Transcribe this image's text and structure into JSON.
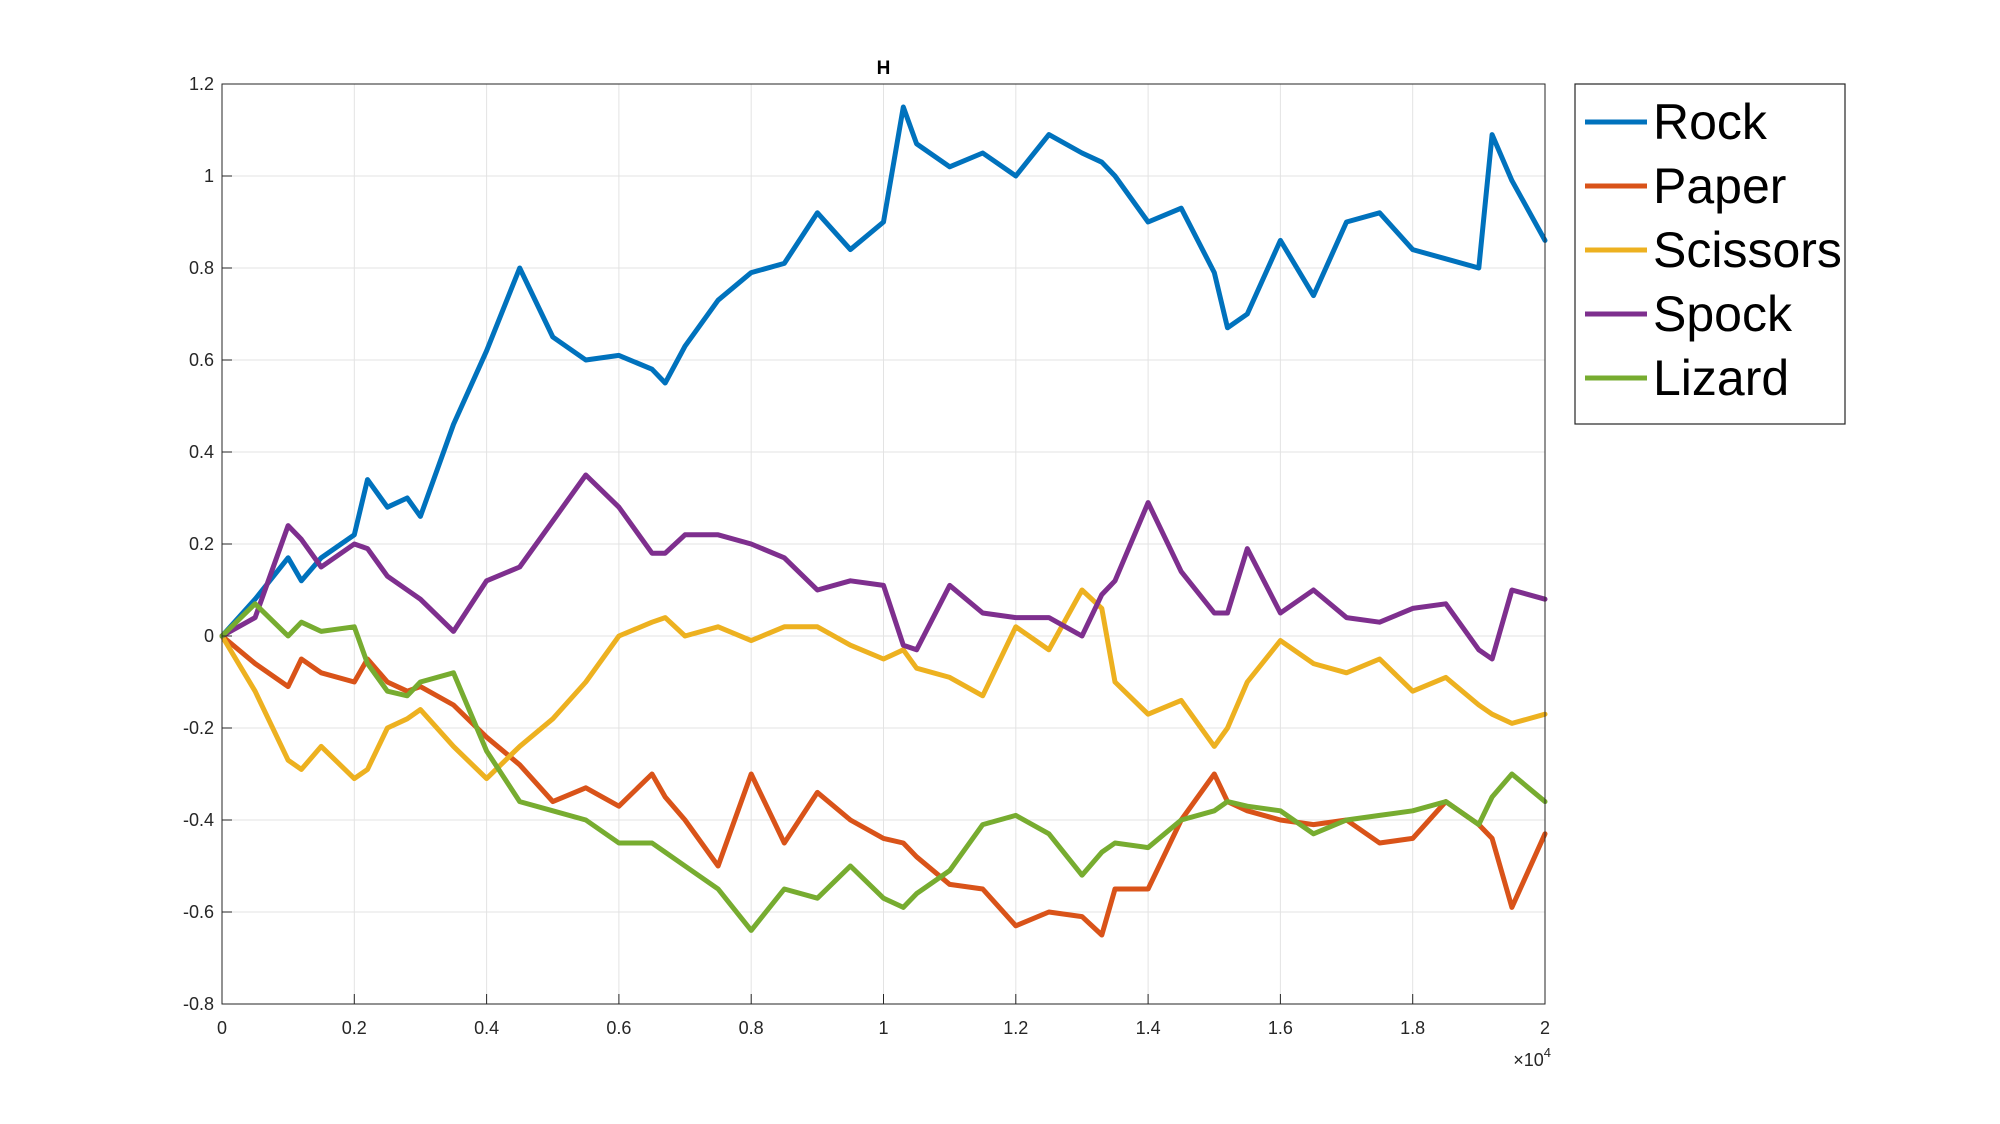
{
  "chart_data": {
    "type": "line",
    "title": "H",
    "xlabel": "",
    "ylabel": "",
    "x_exponent_label": "×10",
    "x_exponent_power": "4",
    "xlim": [
      0,
      20000
    ],
    "ylim": [
      -0.8,
      1.2
    ],
    "x_ticks": [
      0,
      2000,
      4000,
      6000,
      8000,
      10000,
      12000,
      14000,
      16000,
      18000,
      20000
    ],
    "x_tick_labels": [
      "0",
      "0.2",
      "0.4",
      "0.6",
      "0.8",
      "1",
      "1.2",
      "1.4",
      "1.6",
      "1.8",
      "2"
    ],
    "y_ticks": [
      -0.8,
      -0.6,
      -0.4,
      -0.2,
      0,
      0.2,
      0.4,
      0.6,
      0.8,
      1,
      1.2
    ],
    "y_tick_labels": [
      "-0.8",
      "-0.6",
      "-0.4",
      "-0.2",
      "0",
      "0.2",
      "0.4",
      "0.6",
      "0.8",
      "1",
      "1.2"
    ],
    "grid": true,
    "legend_position": "outside-top-right",
    "x": [
      0,
      500,
      1000,
      1200,
      1500,
      2000,
      2200,
      2500,
      2800,
      3000,
      3500,
      4000,
      4500,
      5000,
      5500,
      6000,
      6500,
      6700,
      7000,
      7500,
      8000,
      8500,
      9000,
      9500,
      10000,
      10300,
      10500,
      11000,
      11500,
      12000,
      12500,
      13000,
      13300,
      13500,
      14000,
      14500,
      15000,
      15200,
      15500,
      16000,
      16500,
      17000,
      17500,
      18000,
      18500,
      19000,
      19200,
      19500,
      20000
    ],
    "series": [
      {
        "name": "Rock",
        "color": "#0072BD",
        "values": [
          0.0,
          0.08,
          0.17,
          0.12,
          0.17,
          0.22,
          0.34,
          0.28,
          0.3,
          0.26,
          0.46,
          0.62,
          0.8,
          0.65,
          0.6,
          0.61,
          0.58,
          0.55,
          0.63,
          0.73,
          0.79,
          0.81,
          0.92,
          0.84,
          0.9,
          1.15,
          1.07,
          1.02,
          1.05,
          1.0,
          1.09,
          1.05,
          1.03,
          1.0,
          0.9,
          0.93,
          0.79,
          0.67,
          0.7,
          0.86,
          0.74,
          0.9,
          0.92,
          0.84,
          0.82,
          0.8,
          1.09,
          0.99,
          0.86
        ]
      },
      {
        "name": "Paper",
        "color": "#D95319",
        "values": [
          0.0,
          -0.06,
          -0.11,
          -0.05,
          -0.08,
          -0.1,
          -0.05,
          -0.1,
          -0.12,
          -0.11,
          -0.15,
          -0.22,
          -0.28,
          -0.36,
          -0.33,
          -0.37,
          -0.3,
          -0.35,
          -0.4,
          -0.5,
          -0.3,
          -0.45,
          -0.34,
          -0.4,
          -0.44,
          -0.45,
          -0.48,
          -0.54,
          -0.55,
          -0.63,
          -0.6,
          -0.61,
          -0.65,
          -0.55,
          -0.55,
          -0.4,
          -0.3,
          -0.36,
          -0.38,
          -0.4,
          -0.41,
          -0.4,
          -0.45,
          -0.44,
          -0.36,
          -0.41,
          -0.44,
          -0.59,
          -0.43
        ]
      },
      {
        "name": "Scissors",
        "color": "#EDB120",
        "values": [
          0.0,
          -0.12,
          -0.27,
          -0.29,
          -0.24,
          -0.31,
          -0.29,
          -0.2,
          -0.18,
          -0.16,
          -0.24,
          -0.31,
          -0.24,
          -0.18,
          -0.1,
          0.0,
          0.03,
          0.04,
          0.0,
          0.02,
          -0.01,
          0.02,
          0.02,
          -0.02,
          -0.05,
          -0.03,
          -0.07,
          -0.09,
          -0.13,
          0.02,
          -0.03,
          0.1,
          0.06,
          -0.1,
          -0.17,
          -0.14,
          -0.24,
          -0.2,
          -0.1,
          -0.01,
          -0.06,
          -0.08,
          -0.05,
          -0.12,
          -0.09,
          -0.15,
          -0.17,
          -0.19,
          -0.17
        ]
      },
      {
        "name": "Spock",
        "color": "#7E2F8E",
        "values": [
          0.0,
          0.04,
          0.24,
          0.21,
          0.15,
          0.2,
          0.19,
          0.13,
          0.1,
          0.08,
          0.01,
          0.12,
          0.15,
          0.25,
          0.35,
          0.28,
          0.18,
          0.18,
          0.22,
          0.22,
          0.2,
          0.17,
          0.1,
          0.12,
          0.11,
          -0.02,
          -0.03,
          0.11,
          0.05,
          0.04,
          0.04,
          0.0,
          0.09,
          0.12,
          0.29,
          0.14,
          0.05,
          0.05,
          0.19,
          0.05,
          0.1,
          0.04,
          0.03,
          0.06,
          0.07,
          -0.03,
          -0.05,
          0.1,
          0.08
        ]
      },
      {
        "name": "Lizard",
        "color": "#77AC30",
        "values": [
          0.0,
          0.07,
          0.0,
          0.03,
          0.01,
          0.02,
          -0.06,
          -0.12,
          -0.13,
          -0.1,
          -0.08,
          -0.25,
          -0.36,
          -0.38,
          -0.4,
          -0.45,
          -0.45,
          -0.47,
          -0.5,
          -0.55,
          -0.64,
          -0.55,
          -0.57,
          -0.5,
          -0.57,
          -0.59,
          -0.56,
          -0.51,
          -0.41,
          -0.39,
          -0.43,
          -0.52,
          -0.47,
          -0.45,
          -0.46,
          -0.4,
          -0.38,
          -0.36,
          -0.37,
          -0.38,
          -0.43,
          -0.4,
          -0.39,
          -0.38,
          -0.36,
          -0.41,
          -0.35,
          -0.3,
          -0.36
        ]
      }
    ]
  }
}
